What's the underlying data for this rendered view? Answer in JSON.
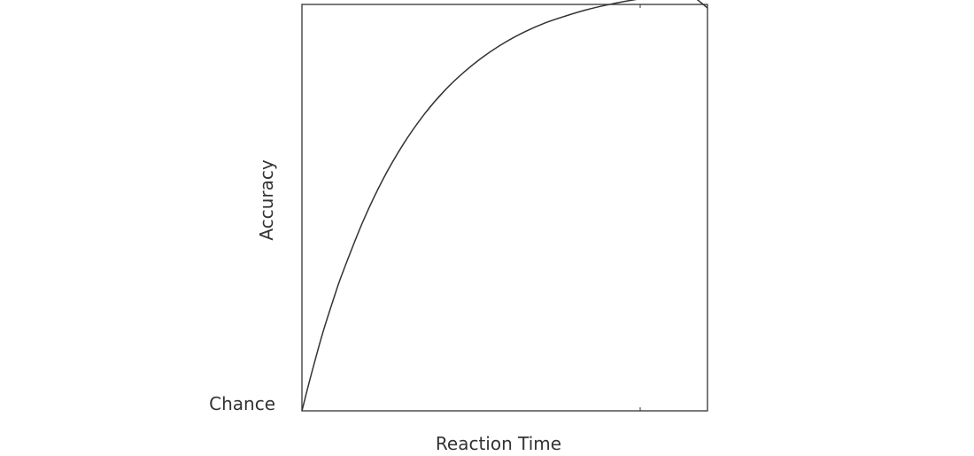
{
  "chart_data": {
    "type": "line",
    "title": "",
    "xlabel": "Reaction Time",
    "ylabel": "Accuracy",
    "y_tick_labels": [
      "Chance"
    ],
    "grid": false,
    "legend": "none",
    "xlim": [
      0,
      1
    ],
    "ylim": [
      0,
      1
    ],
    "series": [
      {
        "color": "#333333",
        "x": [
          0,
          0.02,
          0.05,
          0.08,
          0.1,
          0.15,
          0.2,
          0.25,
          0.3,
          0.35,
          0.4,
          0.45,
          0.5,
          0.55,
          0.6,
          0.65,
          0.7,
          0.75,
          0.8,
          0.85,
          0.9,
          0.95,
          1
        ],
        "y": [
          0,
          0.079,
          0.189,
          0.284,
          0.342,
          0.469,
          0.575,
          0.662,
          0.734,
          0.793,
          0.841,
          0.881,
          0.914,
          0.941,
          0.963,
          0.98,
          0.995,
          1.007,
          1.017,
          1.025,
          1.031,
          1.036,
          1.0
        ]
      }
    ]
  }
}
